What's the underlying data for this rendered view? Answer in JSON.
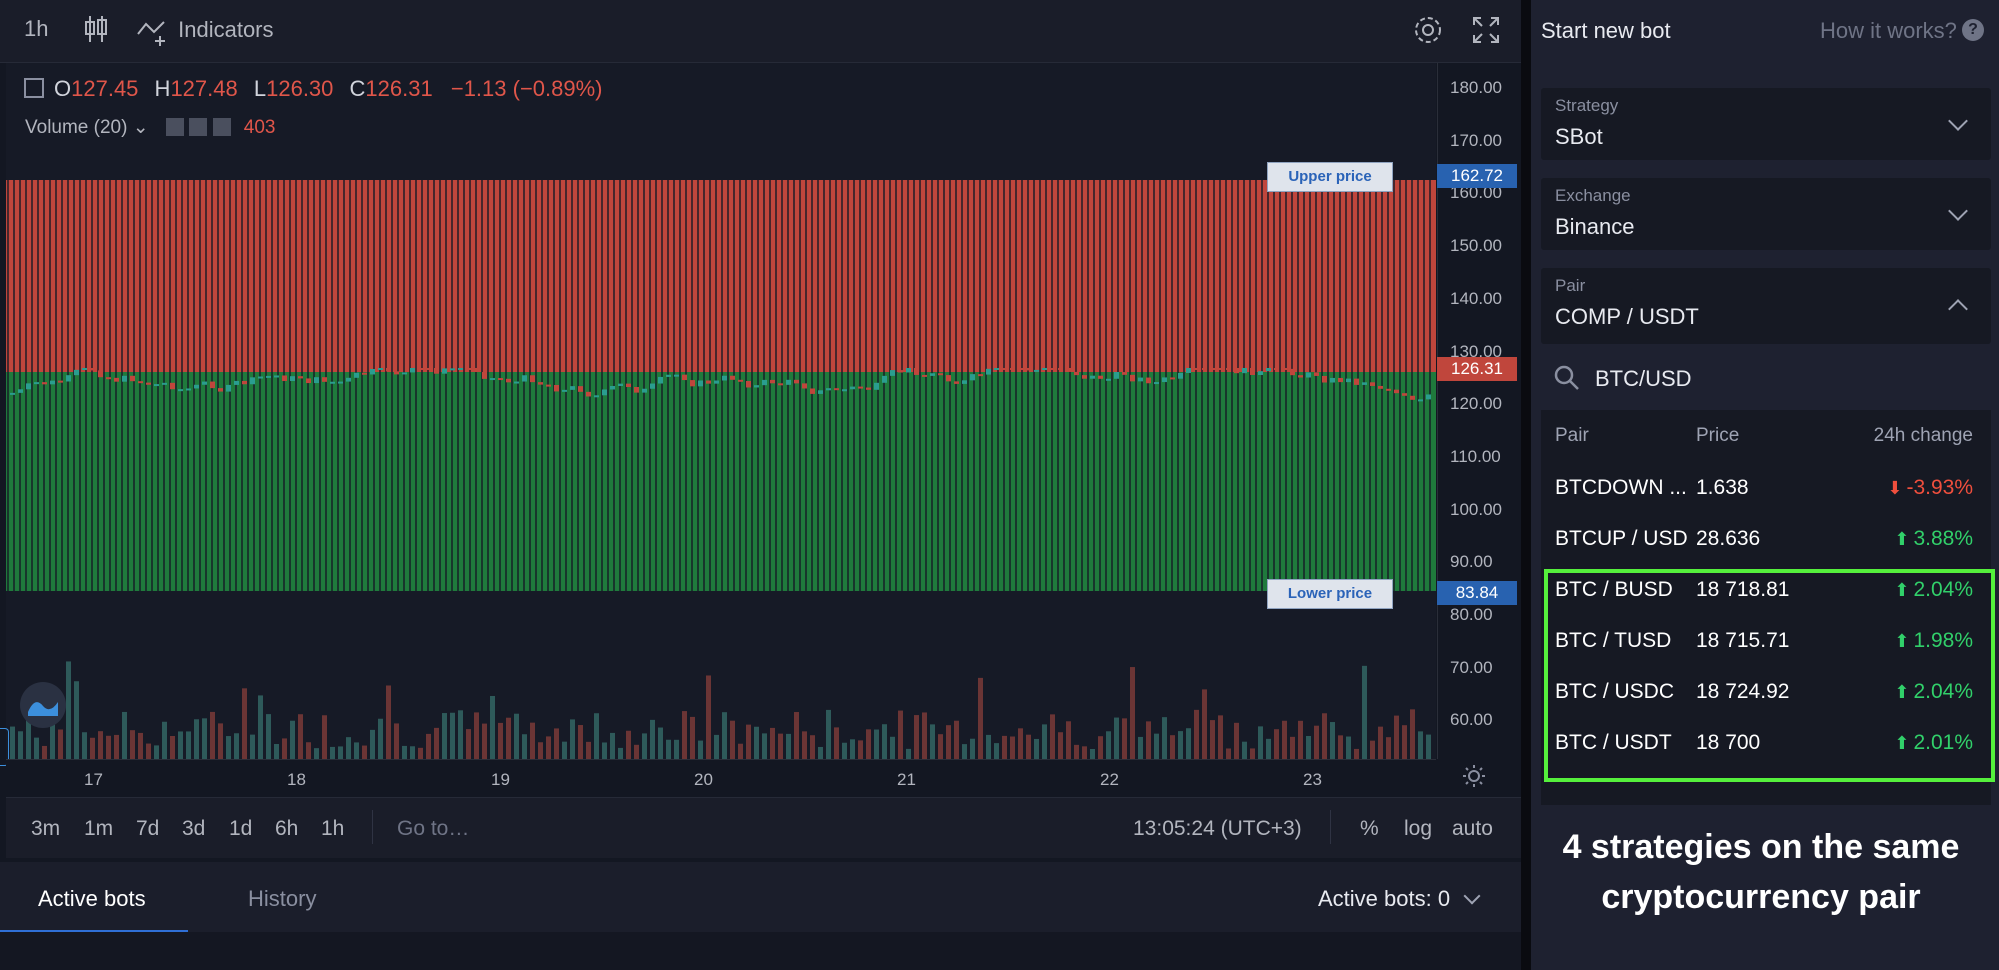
{
  "toolbar": {
    "interval": "1h",
    "indicators_label": "Indicators"
  },
  "ohlc": {
    "o_label": "O",
    "o_value": "127.45",
    "h_label": "H",
    "h_value": "127.48",
    "l_label": "L",
    "l_value": "126.30",
    "c_label": "C",
    "c_value": "126.31",
    "change": "−1.13 (−0.89%)",
    "volume_label": "Volume (20)",
    "volume_value": "403"
  },
  "y_axis_ticks": [
    "180.00",
    "170.00",
    "160.00",
    "150.00",
    "140.00",
    "130.00",
    "120.00",
    "110.00",
    "100.00",
    "90.00",
    "80.00",
    "70.00",
    "60.00"
  ],
  "x_axis_ticks": [
    "17",
    "18",
    "19",
    "20",
    "21",
    "22",
    "23"
  ],
  "price_tags": {
    "upper_value": "162.72",
    "current_value": "126.31",
    "lower_value": "83.84",
    "upper_label": "Upper price",
    "lower_label": "Lower price"
  },
  "range_bar": {
    "ranges": [
      "3m",
      "1m",
      "7d",
      "3d",
      "1d",
      "6h",
      "1h"
    ],
    "goto": "Go to…",
    "time": "13:05:24 (UTC+3)",
    "percent": "%",
    "log": "log",
    "auto": "auto"
  },
  "bottom_tabs": {
    "active_bots": "Active bots",
    "history": "History",
    "active_count": "Active bots: 0"
  },
  "panel": {
    "title": "Start new bot",
    "help": "How it works?",
    "help_icon": "?",
    "strategy_label": "Strategy",
    "strategy_value": "SBot",
    "exchange_label": "Exchange",
    "exchange_value": "Binance",
    "pair_label": "Pair",
    "pair_value": "COMP / USDT",
    "search_value": "BTC/USD",
    "search_placeholder": "BTC/USD",
    "headers": {
      "pair": "Pair",
      "price": "Price",
      "change": "24h change"
    },
    "rows": [
      {
        "pair": "BTCDOWN ...",
        "price": "1.638",
        "change": "-3.93%",
        "dir": "down"
      },
      {
        "pair": "BTCUP / USD",
        "price": "28.636",
        "change": "3.88%",
        "dir": "up"
      },
      {
        "pair": "BTC / BUSD",
        "price": "18 718.81",
        "change": "2.04%",
        "dir": "up"
      },
      {
        "pair": "BTC / TUSD",
        "price": "18 715.71",
        "change": "1.98%",
        "dir": "up"
      },
      {
        "pair": "BTC / USDC",
        "price": "18 724.92",
        "change": "2.04%",
        "dir": "up"
      },
      {
        "pair": "BTC / USDT",
        "price": "18 700",
        "change": "2.01%",
        "dir": "up"
      }
    ],
    "caption_line1": "4 strategies on the same",
    "caption_line2": "cryptocurrency pair"
  },
  "colors": {
    "up": "#31d06a",
    "down": "#f04f3d",
    "sell_zone": "#c0463c",
    "buy_zone": "#1f7a3c",
    "highlight": "#55f03c",
    "price_tag_blue": "#2862b0",
    "price_tag_red": "#c0463c"
  }
}
